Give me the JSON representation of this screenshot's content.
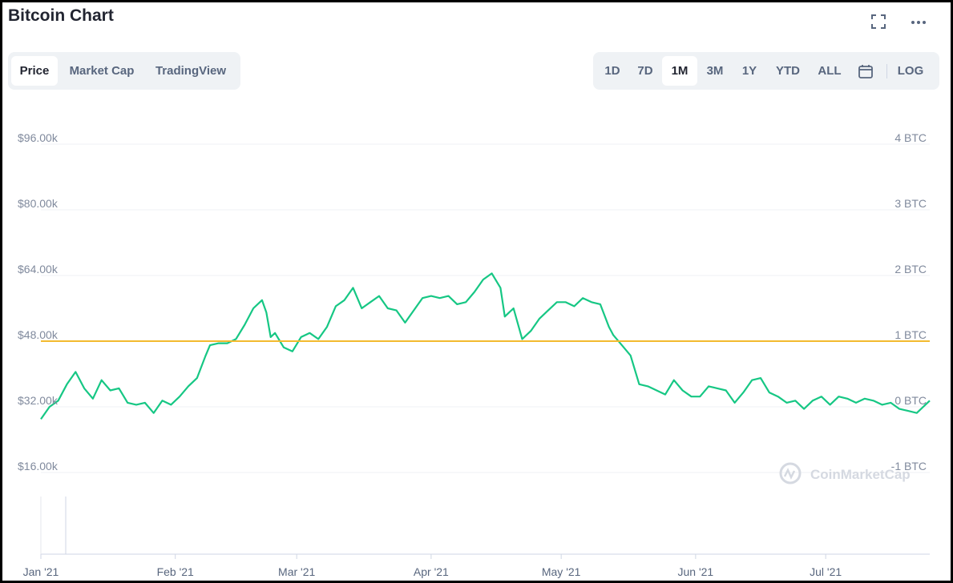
{
  "header": {
    "title": "Bitcoin Chart"
  },
  "icons": {
    "fullscreen": "fullscreen-icon",
    "more": "more-dots-icon",
    "calendar": "calendar-icon"
  },
  "tabs": [
    {
      "label": "Price",
      "active": true
    },
    {
      "label": "Market Cap",
      "active": false
    },
    {
      "label": "TradingView",
      "active": false
    }
  ],
  "ranges": [
    {
      "label": "1D",
      "active": false
    },
    {
      "label": "7D",
      "active": false
    },
    {
      "label": "1M",
      "active": true
    },
    {
      "label": "3M",
      "active": false
    },
    {
      "label": "1Y",
      "active": false
    },
    {
      "label": "YTD",
      "active": false
    },
    {
      "label": "ALL",
      "active": false
    }
  ],
  "log_label": "LOG",
  "watermark": "CoinMarketCap",
  "colors": {
    "line": "#16c784",
    "reference": "#f3ba2f",
    "grid": "#eff2f5",
    "axis_text": "#808a9d"
  },
  "chart_data": {
    "type": "line",
    "title": "",
    "x_tick_labels": [
      "Jan '21",
      "Feb '21",
      "Mar '21",
      "Apr '21",
      "May '21",
      "Jun '21",
      "Jul '21"
    ],
    "x_range": [
      "2021-01-01",
      "2021-07-25"
    ],
    "y_left": {
      "tick_labels": [
        "$16.00k",
        "$32.00k",
        "$48.00k",
        "$64.00k",
        "$80.00k",
        "$96.00k"
      ],
      "tick_values": [
        16000,
        32000,
        48000,
        64000,
        80000,
        96000
      ],
      "range": [
        16000,
        96000
      ]
    },
    "y_right": {
      "tick_labels": [
        "-1 BTC",
        "0 BTC",
        "1 BTC",
        "2 BTC",
        "3 BTC",
        "4 BTC"
      ],
      "tick_values": [
        -1,
        0,
        1,
        2,
        3,
        4
      ]
    },
    "reference_line": {
      "value": 48000
    },
    "grid": true,
    "legend": "none",
    "series": [
      {
        "x": [
          "2021-01-01",
          "2021-01-03",
          "2021-01-05",
          "2021-01-07",
          "2021-01-09",
          "2021-01-11",
          "2021-01-13",
          "2021-01-15",
          "2021-01-17",
          "2021-01-19",
          "2021-01-21",
          "2021-01-23",
          "2021-01-25",
          "2021-01-27",
          "2021-01-29",
          "2021-01-31",
          "2021-02-02",
          "2021-02-04",
          "2021-02-06",
          "2021-02-08",
          "2021-02-09",
          "2021-02-11",
          "2021-02-13",
          "2021-02-15",
          "2021-02-17",
          "2021-02-19",
          "2021-02-21",
          "2021-02-22",
          "2021-02-23",
          "2021-02-24",
          "2021-02-26",
          "2021-02-28",
          "2021-03-02",
          "2021-03-04",
          "2021-03-06",
          "2021-03-08",
          "2021-03-10",
          "2021-03-12",
          "2021-03-14",
          "2021-03-16",
          "2021-03-18",
          "2021-03-20",
          "2021-03-22",
          "2021-03-24",
          "2021-03-26",
          "2021-03-28",
          "2021-03-30",
          "2021-04-01",
          "2021-04-03",
          "2021-04-05",
          "2021-04-07",
          "2021-04-09",
          "2021-04-11",
          "2021-04-13",
          "2021-04-15",
          "2021-04-17",
          "2021-04-18",
          "2021-04-20",
          "2021-04-22",
          "2021-04-24",
          "2021-04-26",
          "2021-04-28",
          "2021-04-30",
          "2021-05-02",
          "2021-05-04",
          "2021-05-06",
          "2021-05-08",
          "2021-05-10",
          "2021-05-12",
          "2021-05-13",
          "2021-05-15",
          "2021-05-17",
          "2021-05-19",
          "2021-05-21",
          "2021-05-23",
          "2021-05-25",
          "2021-05-27",
          "2021-05-29",
          "2021-05-31",
          "2021-06-02",
          "2021-06-04",
          "2021-06-06",
          "2021-06-08",
          "2021-06-10",
          "2021-06-12",
          "2021-06-14",
          "2021-06-16",
          "2021-06-18",
          "2021-06-20",
          "2021-06-22",
          "2021-06-24",
          "2021-06-26",
          "2021-06-28",
          "2021-06-30",
          "2021-07-02",
          "2021-07-04",
          "2021-07-06",
          "2021-07-08",
          "2021-07-10",
          "2021-07-12",
          "2021-07-14",
          "2021-07-16",
          "2021-07-18",
          "2021-07-20",
          "2021-07-22",
          "2021-07-24",
          "2021-07-25"
        ],
        "values": [
          29000,
          32000,
          33500,
          37500,
          40500,
          36500,
          34000,
          38500,
          36000,
          36500,
          33000,
          32500,
          33000,
          30500,
          33500,
          32500,
          34500,
          37000,
          39000,
          44500,
          47000,
          47500,
          47500,
          48500,
          52000,
          56000,
          58000,
          55000,
          49000,
          50000,
          46500,
          45500,
          49000,
          50000,
          48500,
          51500,
          56500,
          58000,
          61000,
          56000,
          57500,
          59000,
          56000,
          55500,
          52500,
          55500,
          58500,
          59000,
          58500,
          59000,
          57000,
          57500,
          60000,
          63000,
          64500,
          61000,
          54000,
          56000,
          48500,
          50500,
          53500,
          55500,
          57500,
          57500,
          56500,
          58500,
          57500,
          57000,
          51500,
          49500,
          47000,
          44500,
          37500,
          37000,
          36000,
          35000,
          38500,
          36000,
          34500,
          34500,
          37000,
          36500,
          36000,
          33000,
          35500,
          38500,
          39000,
          35500,
          34500,
          33000,
          33500,
          31500,
          33500,
          34500,
          32500,
          34500,
          34000,
          33000,
          34000,
          33500,
          32500,
          33000,
          31500,
          31000,
          30500,
          32500,
          33500
        ]
      }
    ]
  }
}
